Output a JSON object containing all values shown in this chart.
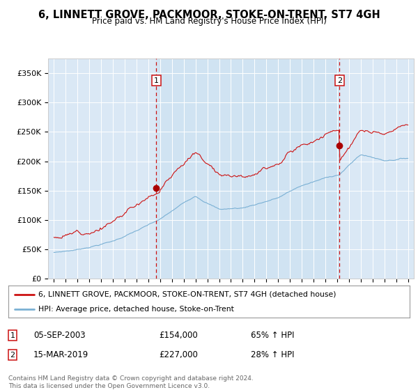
{
  "title": "6, LINNETT GROVE, PACKMOOR, STOKE-ON-TRENT, ST7 4GH",
  "subtitle": "Price paid vs. HM Land Registry's House Price Index (HPI)",
  "bg_color": "#dae8f5",
  "red_line_label": "6, LINNETT GROVE, PACKMOOR, STOKE-ON-TRENT, ST7 4GH (detached house)",
  "blue_line_label": "HPI: Average price, detached house, Stoke-on-Trent",
  "annotation1_date": "05-SEP-2003",
  "annotation1_price": "£154,000",
  "annotation1_hpi": "65% ↑ HPI",
  "annotation2_date": "15-MAR-2019",
  "annotation2_price": "£227,000",
  "annotation2_hpi": "28% ↑ HPI",
  "footer": "Contains HM Land Registry data © Crown copyright and database right 2024.\nThis data is licensed under the Open Government Licence v3.0.",
  "ylim": [
    0,
    375000
  ],
  "yticks": [
    0,
    50000,
    100000,
    150000,
    200000,
    250000,
    300000,
    350000
  ],
  "ytick_labels": [
    "£0",
    "£50K",
    "£100K",
    "£150K",
    "£200K",
    "£250K",
    "£300K",
    "£350K"
  ],
  "marker1_x": 2003.67,
  "marker1_y": 154000,
  "marker2_x": 2019.21,
  "marker2_y": 227000,
  "vline1_x": 2003.67,
  "vline2_x": 2019.21,
  "xlim_left": 1994.5,
  "xlim_right": 2025.5
}
